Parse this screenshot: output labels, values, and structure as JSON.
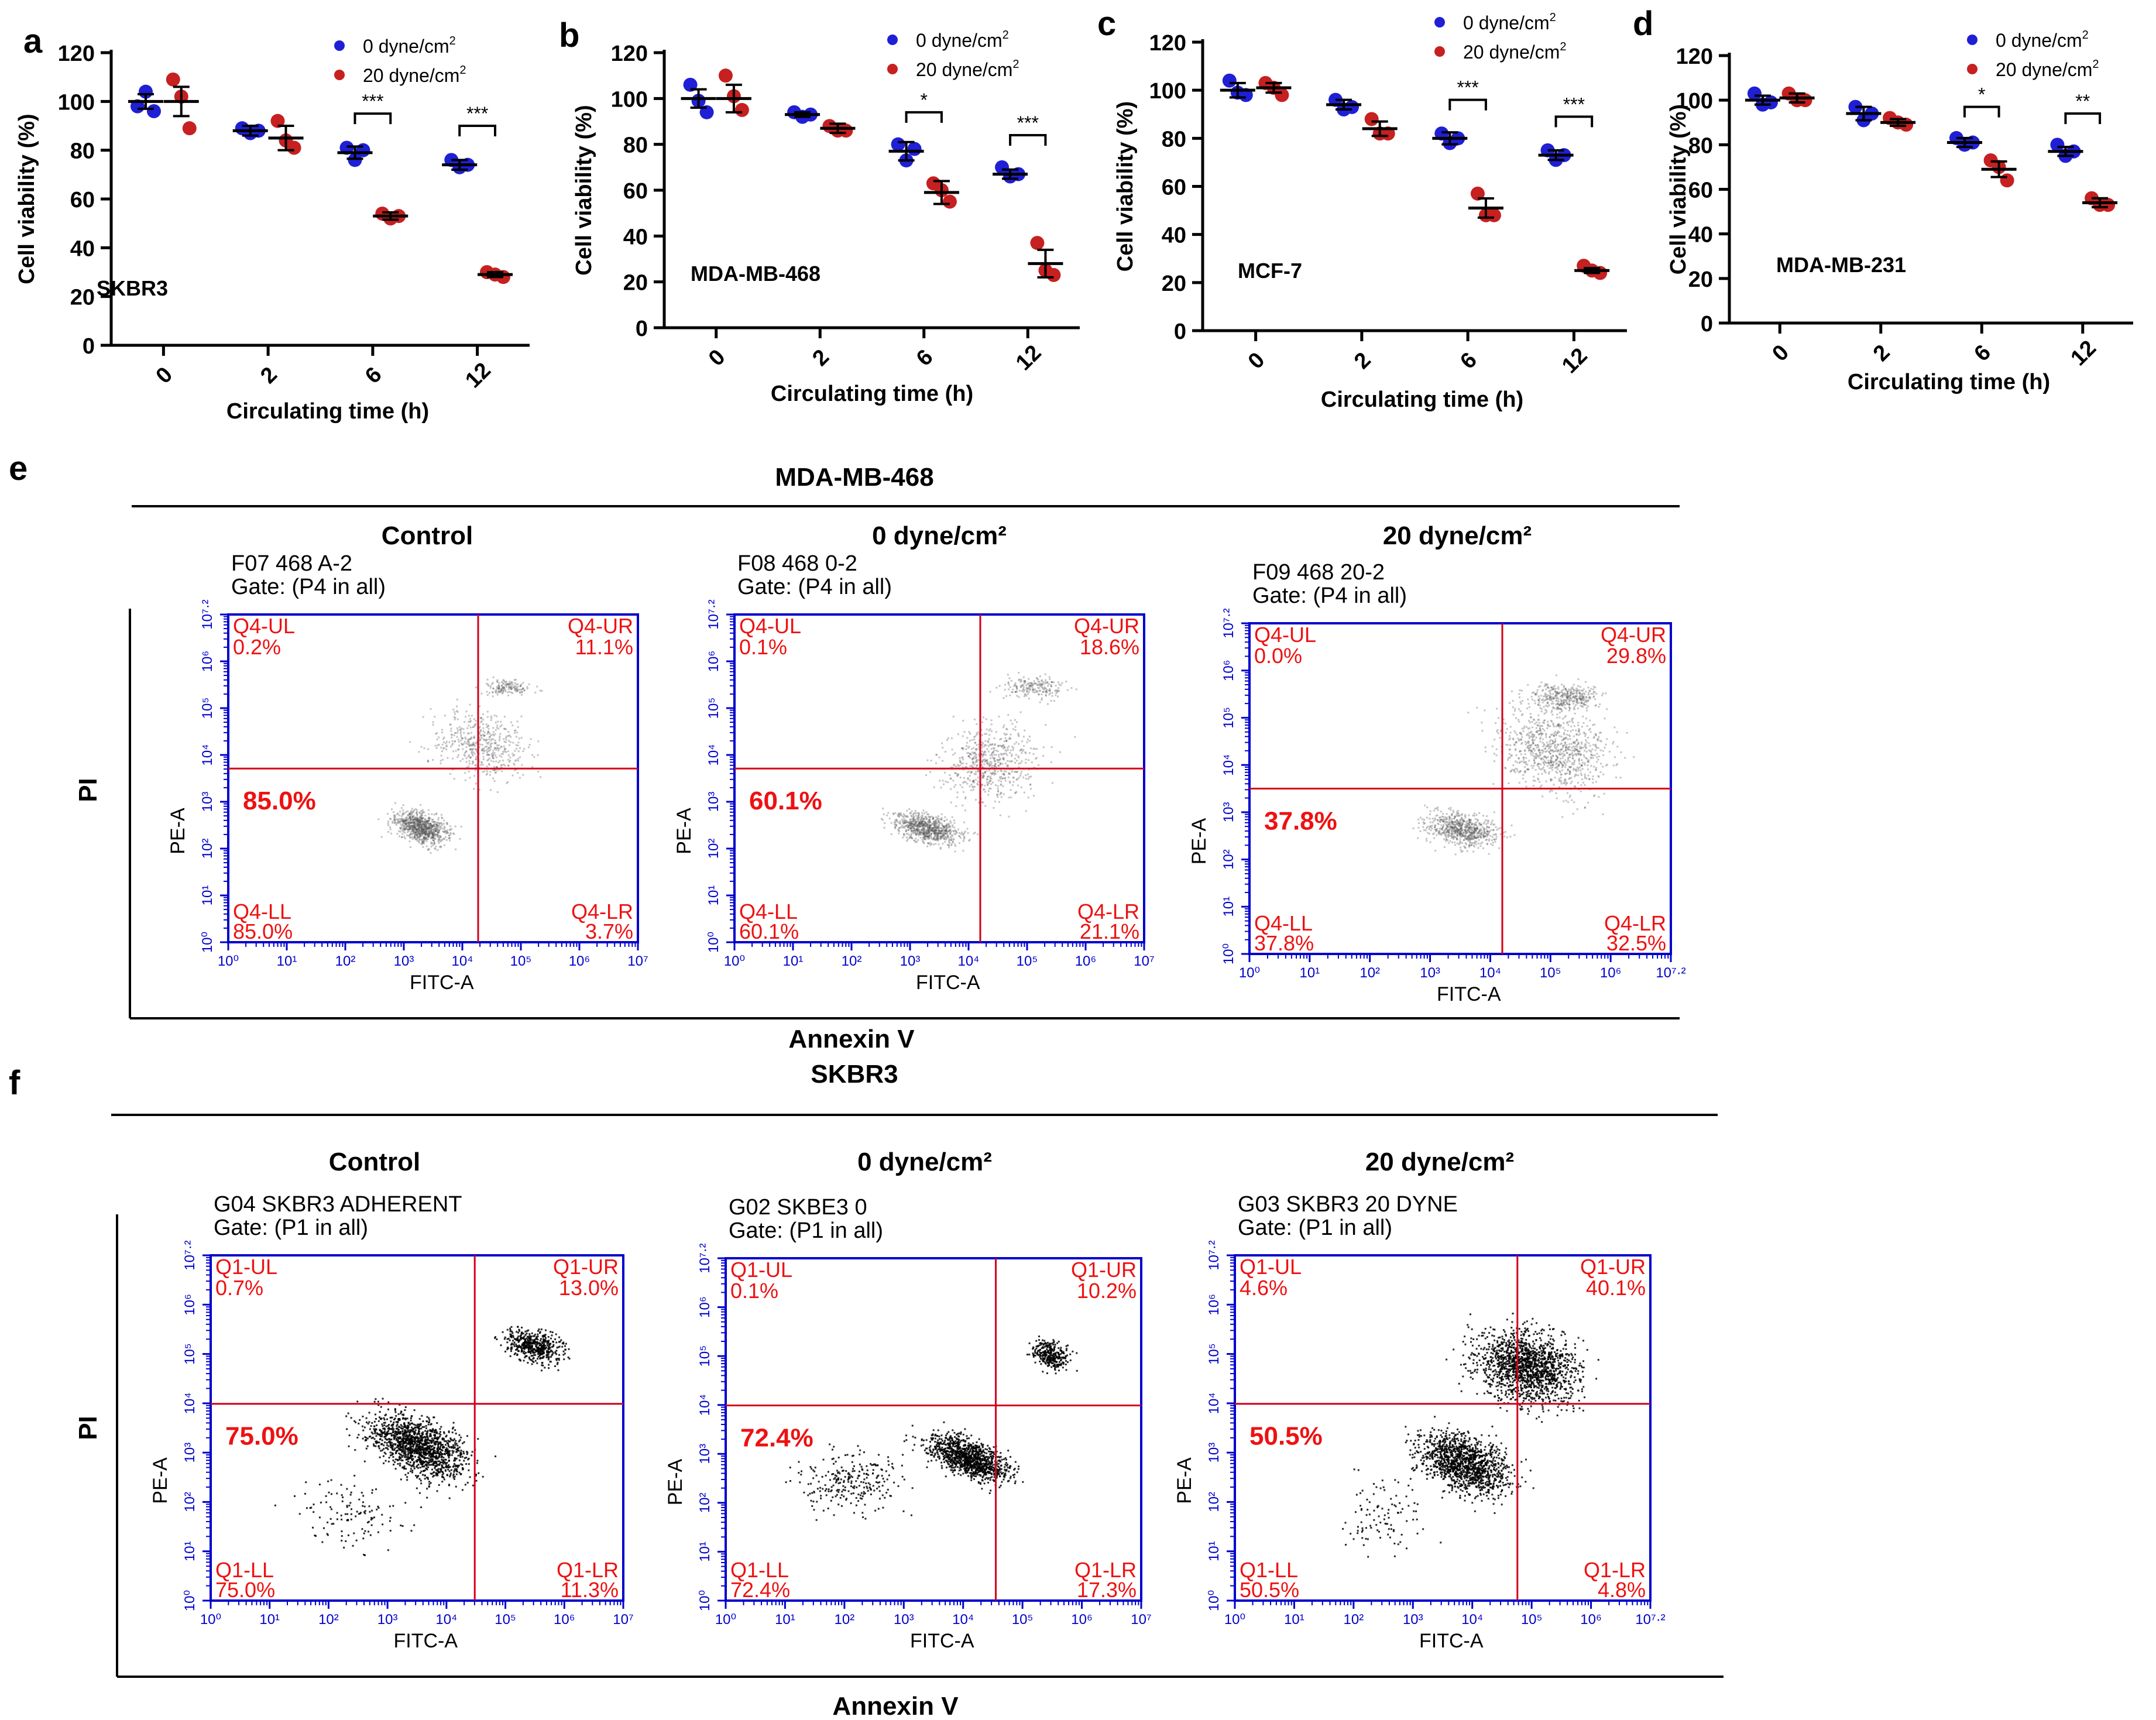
{
  "colors": {
    "series0": "#1f1fd6",
    "series20": "#c62020",
    "flow_axis": "#0000cc",
    "gate": "#d4001a",
    "pct_text": "#ee1111"
  },
  "legend": {
    "s0": "0 dyne/cm",
    "s20": "20 dyne/cm",
    "sup": "2"
  },
  "cv": {
    "xlabel": "Circulating time (h)",
    "ylabel": "Cell viability (%)",
    "yticks": [
      "0",
      "20",
      "40",
      "60",
      "80",
      "100",
      "120"
    ],
    "xticks": [
      "0",
      "2",
      "6",
      "12"
    ]
  },
  "chart_data": [
    {
      "id": "a",
      "type": "scatter",
      "panel_letter": "a",
      "cell_line": "SKBR3",
      "ylim": [
        0,
        120
      ],
      "categories": [
        "0",
        "2",
        "6",
        "12"
      ],
      "series": [
        {
          "name": "0 dyne/cm2",
          "means": [
            100,
            88,
            79,
            74
          ],
          "sem": [
            3,
            2,
            2.5,
            2
          ],
          "points": [
            [
              98,
              104,
              96
            ],
            [
              89,
              87,
              88
            ],
            [
              81,
              76,
              80
            ],
            [
              76,
              73,
              74
            ]
          ]
        },
        {
          "name": "20 dyne/cm2",
          "means": [
            100,
            85,
            53,
            29
          ],
          "sem": [
            6,
            5,
            1.5,
            1
          ],
          "points": [
            [
              109,
              102,
              89
            ],
            [
              92,
              84,
              81
            ],
            [
              54,
              52,
              53
            ],
            [
              30,
              29,
              28
            ]
          ]
        }
      ],
      "sig": [
        "",
        "",
        "***",
        "***"
      ]
    },
    {
      "id": "b",
      "type": "scatter",
      "panel_letter": "b",
      "cell_line": "MDA-MB-468",
      "ylim": [
        0,
        120
      ],
      "categories": [
        "0",
        "2",
        "6",
        "12"
      ],
      "series": [
        {
          "name": "0 dyne/cm2",
          "means": [
            100,
            93,
            77,
            67
          ],
          "sem": [
            4,
            1,
            4,
            2
          ],
          "points": [
            [
              106,
              99,
              94
            ],
            [
              94,
              92,
              93
            ],
            [
              80,
              73,
              78
            ],
            [
              70,
              66,
              67
            ]
          ]
        },
        {
          "name": "20 dyne/cm2",
          "means": [
            100,
            87,
            59,
            28
          ],
          "sem": [
            6,
            2,
            5,
            6
          ],
          "points": [
            [
              110,
              101,
              95
            ],
            [
              88,
              86,
              86
            ],
            [
              63,
              60,
              55
            ],
            [
              37,
              25,
              23
            ]
          ]
        }
      ],
      "sig": [
        "",
        "",
        "*",
        "***"
      ]
    },
    {
      "id": "c",
      "type": "scatter",
      "panel_letter": "c",
      "cell_line": "MCF-7",
      "ylim": [
        0,
        120
      ],
      "categories": [
        "0",
        "2",
        "6",
        "12"
      ],
      "series": [
        {
          "name": "0 dyne/cm2",
          "means": [
            100,
            94,
            80,
            73
          ],
          "sem": [
            3,
            2,
            2.5,
            2
          ],
          "points": [
            [
              104,
              99,
              98
            ],
            [
              96,
              92,
              93
            ],
            [
              82,
              78,
              80
            ],
            [
              75,
              71,
              73
            ]
          ]
        },
        {
          "name": "20 dyne/cm2",
          "means": [
            101,
            84,
            51,
            25
          ],
          "sem": [
            2,
            3,
            4,
            1
          ],
          "points": [
            [
              103,
              101,
              98
            ],
            [
              88,
              82,
              82
            ],
            [
              57,
              48,
              48
            ],
            [
              27,
              25,
              24
            ]
          ]
        }
      ],
      "sig": [
        "",
        "",
        "***",
        "***"
      ]
    },
    {
      "id": "d",
      "type": "scatter",
      "panel_letter": "d",
      "cell_line": "MDA-MB-231",
      "ylim": [
        0,
        120
      ],
      "categories": [
        "0",
        "2",
        "6",
        "12"
      ],
      "series": [
        {
          "name": "0 dyne/cm2",
          "means": [
            100,
            94,
            81,
            77
          ],
          "sem": [
            2,
            3,
            2,
            2
          ],
          "points": [
            [
              103,
              98,
              99
            ],
            [
              97,
              91,
              94
            ],
            [
              83,
              80,
              81
            ],
            [
              80,
              75,
              77
            ]
          ]
        },
        {
          "name": "20 dyne/cm2",
          "means": [
            101,
            90,
            69,
            54
          ],
          "sem": [
            2,
            1.5,
            3.5,
            2
          ],
          "points": [
            [
              103,
              100,
              100
            ],
            [
              92,
              90,
              89
            ],
            [
              73,
              70,
              64
            ],
            [
              56,
              53,
              53
            ]
          ]
        }
      ],
      "sig": [
        "",
        "",
        "*",
        "**"
      ]
    }
  ],
  "flow_common": {
    "xlabel": "FITC-A",
    "ylabel": "PE-A",
    "annexin": "Annexin V",
    "pi": "PI",
    "col_titles": [
      "Control",
      "0 dyne/cm²",
      "20 dyne/cm²"
    ]
  },
  "flow_sections": [
    {
      "letter": "e",
      "title": "MDA-MB-468",
      "plots": [
        {
          "sample": "F07 468 A-2",
          "gate": "Gate: (P4 in all)",
          "q": [
            "Q4-UL",
            "Q4-UR",
            "Q4-LL",
            "Q4-LR"
          ],
          "pct": [
            "0.2%",
            "11.1%",
            "85.0%",
            "3.7%"
          ],
          "big": "85.0%",
          "xmax": "10⁷"
        },
        {
          "sample": "F08 468 0-2",
          "gate": "Gate: (P4 in all)",
          "q": [
            "Q4-UL",
            "Q4-UR",
            "Q4-LL",
            "Q4-LR"
          ],
          "pct": [
            "0.1%",
            "18.6%",
            "60.1%",
            "21.1%"
          ],
          "big": "60.1%",
          "xmax": "10⁷"
        },
        {
          "sample": "F09 468 20-2",
          "gate": "Gate: (P4 in all)",
          "q": [
            "Q4-UL",
            "Q4-UR",
            "Q4-LL",
            "Q4-LR"
          ],
          "pct": [
            "0.0%",
            "29.8%",
            "37.8%",
            "32.5%"
          ],
          "big": "37.8%",
          "xmax": "10⁷·²"
        }
      ]
    },
    {
      "letter": "f",
      "title": "SKBR3",
      "plots": [
        {
          "sample": "G04 SKBR3 ADHERENT",
          "gate": "Gate: (P1 in all)",
          "q": [
            "Q1-UL",
            "Q1-UR",
            "Q1-LL",
            "Q1-LR"
          ],
          "pct": [
            "0.7%",
            "13.0%",
            "75.0%",
            "11.3%"
          ],
          "big": "75.0%",
          "xmax": "10⁷"
        },
        {
          "sample": "G02 SKBE3 0",
          "gate": "Gate: (P1 in all)",
          "q": [
            "Q1-UL",
            "Q1-UR",
            "Q1-LL",
            "Q1-LR"
          ],
          "pct": [
            "0.1%",
            "10.2%",
            "72.4%",
            "17.3%"
          ],
          "big": "72.4%",
          "xmax": "10⁷"
        },
        {
          "sample": "G03 SKBR3 20 DYNE",
          "gate": "Gate: (P1 in all)",
          "q": [
            "Q1-UL",
            "Q1-UR",
            "Q1-LL",
            "Q1-LR"
          ],
          "pct": [
            "4.6%",
            "40.1%",
            "50.5%",
            "4.8%"
          ],
          "big": "50.5%",
          "xmax": "10⁷·²"
        }
      ]
    }
  ]
}
